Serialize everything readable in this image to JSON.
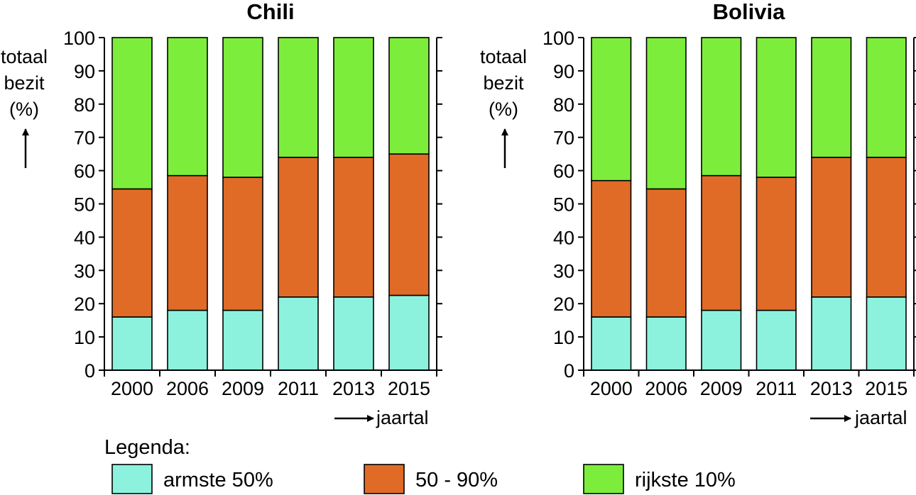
{
  "chart_data": [
    {
      "type": "bar",
      "stacked": true,
      "title": "Chili",
      "ylabel": [
        "totaal",
        "bezit",
        "(%)"
      ],
      "xlabel": "jaartal",
      "ylim": [
        0,
        100
      ],
      "yticks": [
        0,
        10,
        20,
        30,
        40,
        50,
        60,
        70,
        80,
        90,
        100
      ],
      "categories": [
        "2000",
        "2006",
        "2009",
        "2011",
        "2013",
        "2015"
      ],
      "series": [
        {
          "name": "armste 50%",
          "color": "#8cf2de",
          "values": [
            16,
            18,
            18,
            22,
            22,
            22.5
          ]
        },
        {
          "name": "50 - 90%",
          "color": "#e06b27",
          "values": [
            38.5,
            40.5,
            40,
            42,
            42,
            42.5
          ]
        },
        {
          "name": "rijkste 10%",
          "color": "#7ded3b",
          "values": [
            45.5,
            41.5,
            42,
            36,
            36,
            35
          ]
        }
      ]
    },
    {
      "type": "bar",
      "stacked": true,
      "title": "Bolivia",
      "ylabel": [
        "totaal",
        "bezit",
        "(%)"
      ],
      "xlabel": "jaartal",
      "ylim": [
        0,
        100
      ],
      "yticks": [
        0,
        10,
        20,
        30,
        40,
        50,
        60,
        70,
        80,
        90,
        100
      ],
      "categories": [
        "2000",
        "2006",
        "2009",
        "2011",
        "2013",
        "2015"
      ],
      "series": [
        {
          "name": "armste 50%",
          "color": "#8cf2de",
          "values": [
            16,
            16,
            18,
            18,
            22,
            22
          ]
        },
        {
          "name": "50 - 90%",
          "color": "#e06b27",
          "values": [
            41,
            38.5,
            40.5,
            40,
            42,
            42
          ]
        },
        {
          "name": "rijkste 10%",
          "color": "#7ded3b",
          "values": [
            43,
            45.5,
            41.5,
            42,
            36,
            36
          ]
        }
      ]
    }
  ],
  "legend": {
    "title": "Legenda:",
    "items": [
      {
        "label": "armste 50%",
        "color": "#8cf2de"
      },
      {
        "label": "50 - 90%",
        "color": "#e06b27"
      },
      {
        "label": "rijkste 10%",
        "color": "#7ded3b"
      }
    ]
  }
}
